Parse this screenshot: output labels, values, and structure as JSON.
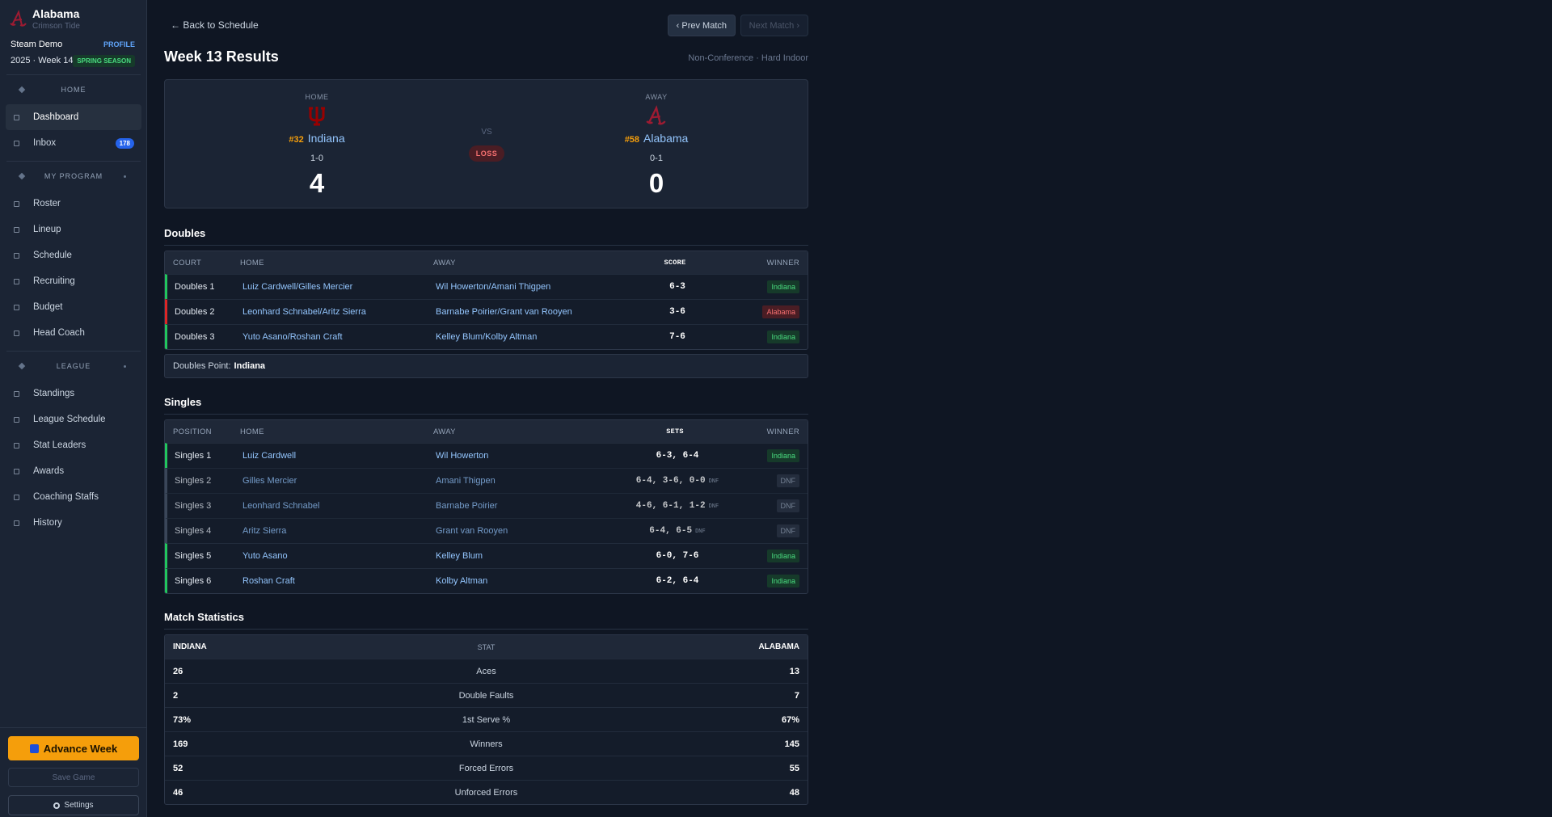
{
  "sidebar": {
    "team": "Alabama",
    "team_sub": "Crimson Tide",
    "user": "Steam Demo",
    "profile": "PROFILE",
    "season": "2025 · Week 14",
    "season_badge": "SPRING SEASON",
    "sections": [
      {
        "title": "HOME",
        "items": [
          {
            "label": "Dashboard",
            "active": true
          },
          {
            "label": "Inbox",
            "badge": "178"
          }
        ]
      },
      {
        "title": "MY PROGRAM",
        "items": [
          {
            "label": "Roster"
          },
          {
            "label": "Lineup"
          },
          {
            "label": "Schedule"
          },
          {
            "label": "Recruiting"
          },
          {
            "label": "Budget"
          },
          {
            "label": "Head Coach"
          }
        ]
      },
      {
        "title": "LEAGUE",
        "items": [
          {
            "label": "Standings"
          },
          {
            "label": "League Schedule"
          },
          {
            "label": "Stat Leaders"
          },
          {
            "label": "Awards"
          },
          {
            "label": "Coaching Staffs"
          },
          {
            "label": "History"
          }
        ]
      }
    ],
    "advance": "Advance Week",
    "save": "Save Game",
    "settings": "Settings"
  },
  "header": {
    "back": "← Back to Schedule",
    "prev": "‹ Prev Match",
    "next": "Next Match ›",
    "title": "Week 13 Results",
    "meta": "Non-Conference · Hard Indoor"
  },
  "scoreboard": {
    "home": {
      "label": "HOME",
      "rank": "#32",
      "name": "Indiana",
      "record": "1-0",
      "score": 4
    },
    "vs": "VS",
    "result": "LOSS",
    "away": {
      "label": "AWAY",
      "rank": "#58",
      "name": "Alabama",
      "record": "0-1",
      "score": 0
    }
  },
  "doubles": {
    "title": "Doubles",
    "columns": [
      "COURT",
      "HOME",
      "AWAY",
      "SCORE",
      "WINNER"
    ],
    "rows": [
      {
        "court": "Doubles 1",
        "home": "Luiz Cardwell/Gilles Mercier",
        "away": "Wil Howerton/Amani Thigpen",
        "score": "6-3",
        "winner": "Indiana"
      },
      {
        "court": "Doubles 2",
        "home": "Leonhard Schnabel/Aritz Sierra",
        "away": "Barnabe Poirier/Grant van Rooyen",
        "score": "3-6",
        "winner": "Alabama"
      },
      {
        "court": "Doubles 3",
        "home": "Yuto Asano/Roshan Craft",
        "away": "Kelley Blum/Kolby Altman",
        "score": "7-6",
        "winner": "Indiana"
      }
    ],
    "point_label": "Doubles Point:",
    "point_value": "Indiana"
  },
  "singles": {
    "title": "Singles",
    "columns": [
      "POSITION",
      "HOME",
      "AWAY",
      "SETS",
      "WINNER"
    ],
    "rows": [
      {
        "position": "Singles 1",
        "home": "Luiz Cardwell",
        "away": "Wil Howerton",
        "sets": "6-3, 6-4",
        "winner": "Indiana"
      },
      {
        "position": "Singles 2",
        "home": "Gilles Mercier",
        "away": "Amani Thigpen",
        "sets": "6-4, 3-6, 0-0",
        "note": "DNF",
        "winner": "DNF"
      },
      {
        "position": "Singles 3",
        "home": "Leonhard Schnabel",
        "away": "Barnabe Poirier",
        "sets": "4-6, 6-1, 1-2",
        "note": "DNF",
        "winner": "DNF"
      },
      {
        "position": "Singles 4",
        "home": "Aritz Sierra",
        "away": "Grant van Rooyen",
        "sets": "6-4, 6-5",
        "note": "DNF",
        "winner": "DNF"
      },
      {
        "position": "Singles 5",
        "home": "Yuto Asano",
        "away": "Kelley Blum",
        "sets": "6-0, 7-6",
        "winner": "Indiana"
      },
      {
        "position": "Singles 6",
        "home": "Roshan Craft",
        "away": "Kolby Altman",
        "sets": "6-2, 6-4",
        "winner": "Indiana"
      }
    ]
  },
  "statistics": {
    "title": "Match Statistics",
    "columns": [
      "INDIANA",
      "STAT",
      "ALABAMA"
    ],
    "rows": [
      [
        "26",
        "Aces",
        "13"
      ],
      [
        "2",
        "Double Faults",
        "7"
      ],
      [
        "73%",
        "1st Serve %",
        "67%"
      ],
      [
        "169",
        "Winners",
        "145"
      ],
      [
        "52",
        "Forced Errors",
        "55"
      ],
      [
        "46",
        "Unforced Errors",
        "48"
      ]
    ]
  }
}
